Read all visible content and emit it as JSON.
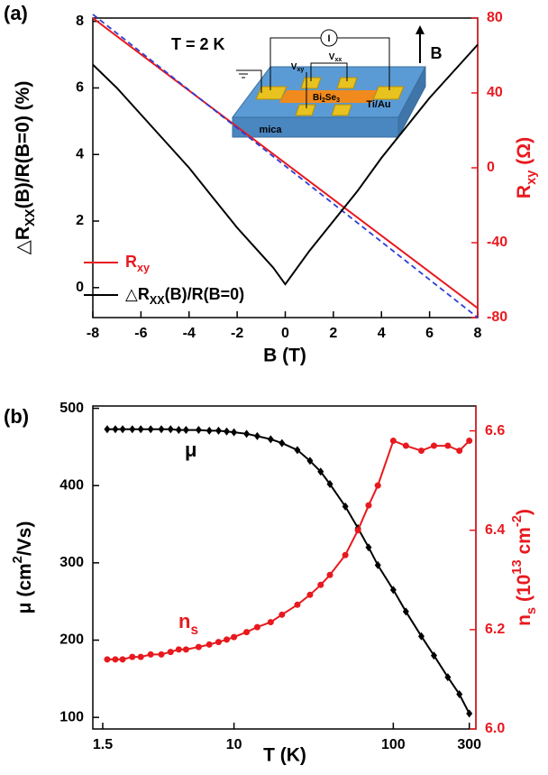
{
  "chart_data": [
    {
      "type": "line",
      "panel_label": "(a)",
      "condition": "T = 2 K",
      "x_label": "B (T)",
      "y_label": [
        "△R",
        {
          "sub": "XX"
        },
        "(B)/R(B=0) (%)"
      ],
      "y2_label": [
        "R",
        {
          "sub": "xy"
        },
        " (Ω)"
      ],
      "xlim": [
        -8,
        8
      ],
      "xticks": [
        -8,
        -6,
        -4,
        -2,
        0,
        2,
        4,
        6,
        8
      ],
      "ylim": [
        -0.9,
        8.1
      ],
      "yticks": [
        0,
        2,
        4,
        6,
        8
      ],
      "y2lim": [
        -80,
        80
      ],
      "y2ticks": [
        -80,
        -40,
        0,
        40,
        80
      ],
      "y2_color": "#e8191e",
      "legend": "lower left",
      "inset": {
        "substrate": "mica",
        "film": [
          "Bi",
          {
            "sub": "2"
          },
          "Se",
          {
            "sub": "3"
          }
        ],
        "contacts": "Ti/Au",
        "field": "B",
        "current": "I",
        "v_hall": [
          "V",
          {
            "sub": "xy"
          }
        ],
        "v_long": [
          "V",
          {
            "sub": "xx"
          }
        ]
      },
      "series": [
        {
          "name": [
            "R",
            {
              "sub": "xy"
            }
          ],
          "color": "#e8191e",
          "axis": "y2",
          "x": [
            -8,
            8
          ],
          "values": [
            80,
            -75
          ]
        },
        {
          "color": "#2b3fd6",
          "axis": "y2",
          "dash": true,
          "x": [
            -8,
            8
          ],
          "values": [
            82,
            -80
          ]
        },
        {
          "name": [
            "△R",
            {
              "sub": "XX"
            },
            "(B)/R(B=0)"
          ],
          "color": "#000000",
          "x": [
            -8,
            -7,
            -6,
            -5,
            -4,
            -3,
            -2,
            -1,
            -0.5,
            0,
            0.5,
            1,
            2,
            3,
            4,
            5,
            6,
            7,
            8
          ],
          "values": [
            6.7,
            6.0,
            5.2,
            4.4,
            3.6,
            2.7,
            1.8,
            1.0,
            0.6,
            0.1,
            0.6,
            1.1,
            2.0,
            2.9,
            3.9,
            4.8,
            5.7,
            6.5,
            7.3
          ]
        }
      ]
    },
    {
      "type": "line",
      "panel_label": "(b)",
      "x_label": "T (K)",
      "y_label": [
        "μ (cm",
        {
          "sup": "2"
        },
        "/Vs)"
      ],
      "y2_label": [
        "n",
        {
          "sub": "s"
        },
        " (10",
        {
          "sup": "13"
        },
        " cm",
        {
          "sup": "-2"
        },
        ")"
      ],
      "x_scale": "log",
      "xlim": [
        1.3,
        330
      ],
      "xticks": [
        1.5,
        10,
        100,
        300
      ],
      "ylim": [
        85,
        503
      ],
      "yticks": [
        100,
        200,
        300,
        400,
        500
      ],
      "y2lim": [
        6.0,
        6.65
      ],
      "y2ticks": [
        {
          "value": 6,
          "label": "6.0"
        },
        6.2,
        6.4,
        6.6
      ],
      "y2_color": "#e8191e",
      "x": [
        1.6,
        1.8,
        2,
        2.3,
        2.6,
        3,
        3.5,
        4,
        4.5,
        5,
        6,
        7,
        8,
        9,
        10,
        12,
        14,
        17,
        20,
        25,
        30,
        35,
        40,
        50,
        60,
        70,
        80,
        100,
        120,
        150,
        180,
        220,
        260,
        300
      ],
      "series": [
        {
          "name": "μ",
          "color": "#000000",
          "marker": "diamond",
          "values": [
            473,
            473,
            473,
            473,
            473,
            473,
            473,
            473,
            472,
            472,
            472,
            471,
            471,
            470,
            469,
            467,
            464,
            460,
            455,
            446,
            432,
            418,
            402,
            373,
            345,
            320,
            297,
            265,
            237,
            205,
            180,
            152,
            130,
            105
          ]
        },
        {
          "name": [
            "n",
            {
              "sub": "s"
            }
          ],
          "color": "#e8191e",
          "marker": "circle",
          "axis": "y2",
          "values": [
            6.14,
            6.14,
            6.14,
            6.145,
            6.145,
            6.15,
            6.15,
            6.155,
            6.16,
            6.16,
            6.165,
            6.17,
            6.175,
            6.18,
            6.185,
            6.195,
            6.205,
            6.215,
            6.23,
            6.25,
            6.27,
            6.29,
            6.31,
            6.35,
            6.4,
            6.45,
            6.49,
            6.58,
            6.57,
            6.56,
            6.57,
            6.57,
            6.56,
            6.58
          ]
        }
      ]
    }
  ]
}
